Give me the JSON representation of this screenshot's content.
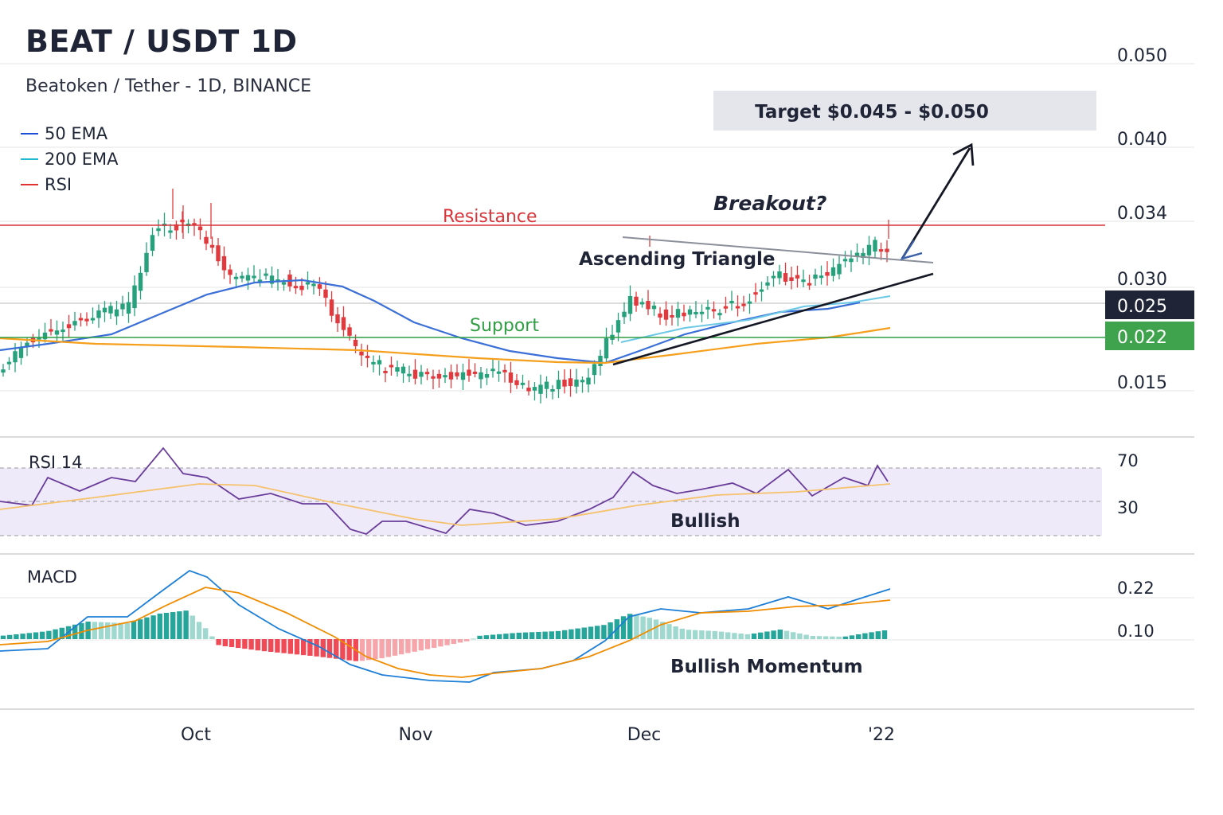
{
  "header": {
    "title": "BEAT / USDT 1D",
    "subtitle": "Beatoken / Tether - 1D, BINANCE"
  },
  "legend": [
    {
      "label": "50 EMA",
      "color": "#1d4ed8"
    },
    {
      "label": "200 EMA",
      "color": "#22b8cf"
    },
    {
      "label": "RSI",
      "color": "#e03131"
    }
  ],
  "colors": {
    "up": "#26a17b",
    "down": "#e03a3e",
    "ema50": "#3b6fd8",
    "ema200": "#f59f1c",
    "trend_cyan": "#6cc9e6",
    "resistance": "#d9343a",
    "support": "#2f9e44",
    "rsi_line": "#6a3d9a",
    "rsi_ma": "#f5c26b",
    "macd_line": "#1c7ed6",
    "signal_line": "#f08c00",
    "band": "#efeafa"
  },
  "annotations": {
    "target": "Target $0.045 - $0.050",
    "breakout": "Breakout?",
    "resistance": "Resistance",
    "support": "Support",
    "triangle": "Ascending Triangle",
    "rsi_note": "Bullish",
    "macd_note": "Bullish Momentum"
  },
  "badges": [
    {
      "label": "0.025",
      "bg": "#1f2436",
      "fg": "#ffffff"
    },
    {
      "label": "0.022",
      "bg": "#3fa34d",
      "fg": "#ffffff"
    }
  ],
  "chart_data": [
    {
      "type": "candlestick",
      "price_ticks": [
        "0.050",
        "0.040",
        "0.034",
        "0.030",
        "0.015"
      ],
      "x_ticks": [
        "Oct",
        "Nov",
        "Dec",
        "'22"
      ],
      "resistance": 0.034,
      "support": 0.022
    },
    {
      "type": "line",
      "title": "RSI 14",
      "ticks": [
        "70",
        "30"
      ]
    },
    {
      "type": "bar",
      "title": "MACD",
      "ticks": [
        "0.22",
        "0.10"
      ]
    }
  ]
}
